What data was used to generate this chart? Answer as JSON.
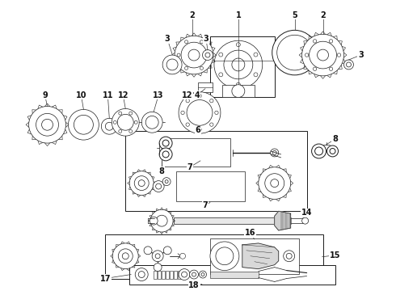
{
  "bg": "#ffffff",
  "lc": "#1a1a1a",
  "lw_thin": 0.5,
  "lw_med": 0.7,
  "lw_thick": 1.0,
  "fig_w": 4.9,
  "fig_h": 3.6,
  "dpi": 100
}
